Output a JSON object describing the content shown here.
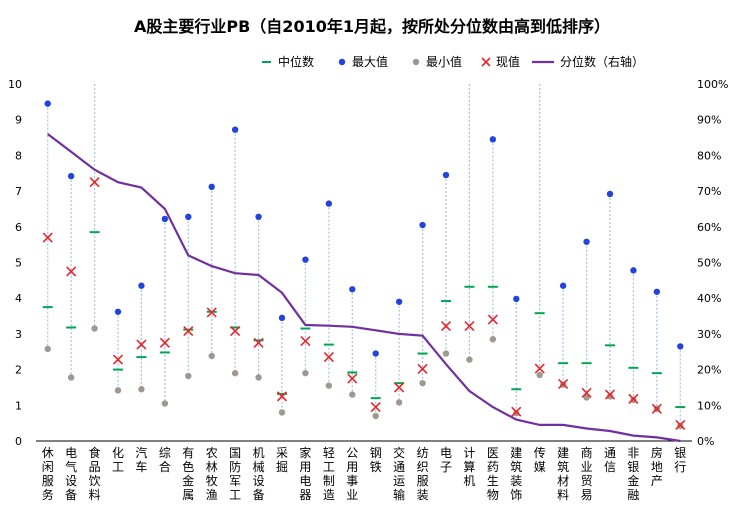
{
  "chart_data": {
    "type": "scatter",
    "title": "A股主要行业PB（自2010年1月起，按所处分位数由高到低排序）",
    "categories": [
      "休闲服务",
      "电气设备",
      "食品饮料",
      "化工",
      "汽车",
      "综合",
      "有色金属",
      "农林牧渔",
      "国防军工",
      "机械设备",
      "采掘",
      "家用电器",
      "轻工制造",
      "公用事业",
      "钢铁",
      "交通运输",
      "纺织服装",
      "电子",
      "计算机",
      "医药生物",
      "建筑装饰",
      "传媒",
      "建筑材料",
      "商业贸易",
      "通信",
      "非银金融",
      "房地产",
      "银行"
    ],
    "series": [
      {
        "name": "中位数",
        "color": "#00a651",
        "marker": "dash",
        "values": [
          3.75,
          3.18,
          5.85,
          2.0,
          2.35,
          2.48,
          3.12,
          3.62,
          3.18,
          2.82,
          1.32,
          3.15,
          2.7,
          1.92,
          1.2,
          1.62,
          2.45,
          3.92,
          4.32,
          4.32,
          1.45,
          3.58,
          2.18,
          2.18,
          2.68,
          2.05,
          1.9,
          0.95
        ]
      },
      {
        "name": "最大值",
        "color": "#2244dd",
        "marker": "dot",
        "values": [
          9.45,
          7.42,
          null,
          3.62,
          4.35,
          6.22,
          6.28,
          7.12,
          8.72,
          6.28,
          3.45,
          5.08,
          6.65,
          4.25,
          2.45,
          3.9,
          6.05,
          7.45,
          null,
          8.45,
          3.98,
          null,
          4.35,
          5.58,
          6.92,
          4.78,
          4.18,
          2.65
        ]
      },
      {
        "name": "最小值",
        "color": "#a09790",
        "marker": "dot",
        "values": [
          2.58,
          1.78,
          3.15,
          1.42,
          1.45,
          1.05,
          1.82,
          2.38,
          1.9,
          1.78,
          0.8,
          1.9,
          1.55,
          1.3,
          0.7,
          1.08,
          1.62,
          2.45,
          2.28,
          2.85,
          0.78,
          1.85,
          1.58,
          1.22,
          1.25,
          1.15,
          0.9,
          0.42
        ]
      },
      {
        "name": "现值",
        "color": "#e8262a",
        "marker": "cross",
        "values": [
          5.7,
          4.75,
          7.25,
          2.28,
          2.7,
          2.75,
          3.08,
          3.6,
          3.08,
          2.75,
          1.25,
          2.8,
          2.35,
          1.75,
          0.95,
          1.5,
          2.02,
          3.22,
          3.22,
          3.4,
          0.82,
          2.03,
          1.6,
          1.35,
          1.3,
          1.18,
          0.9,
          0.45
        ]
      }
    ],
    "percentile_series": {
      "name": "分位数（右轴）",
      "color": "#7030a0",
      "values": [
        86,
        81,
        76,
        72.5,
        71,
        65,
        52,
        49,
        47,
        46.5,
        41.5,
        32.5,
        32.3,
        32,
        31,
        30,
        29.5,
        21.5,
        14,
        9.5,
        6,
        4.5,
        4.5,
        3.5,
        2.8,
        1.5,
        1.0,
        0
      ]
    },
    "ylim": [
      0,
      10
    ],
    "yticks": [
      "0",
      "1",
      "2",
      "3",
      "4",
      "5",
      "6",
      "7",
      "8",
      "9",
      "10"
    ],
    "y2lim": [
      0,
      100
    ],
    "y2ticks": [
      "0%",
      "10%",
      "20%",
      "30%",
      "40%",
      "50%",
      "60%",
      "70%",
      "80%",
      "90%",
      "100%"
    ],
    "legend": [
      "中位数",
      "最大值",
      "最小值",
      "现值",
      "分位数（右轴）"
    ],
    "legend_position": "top-right",
    "range_line_color": "#9dc3e6"
  }
}
